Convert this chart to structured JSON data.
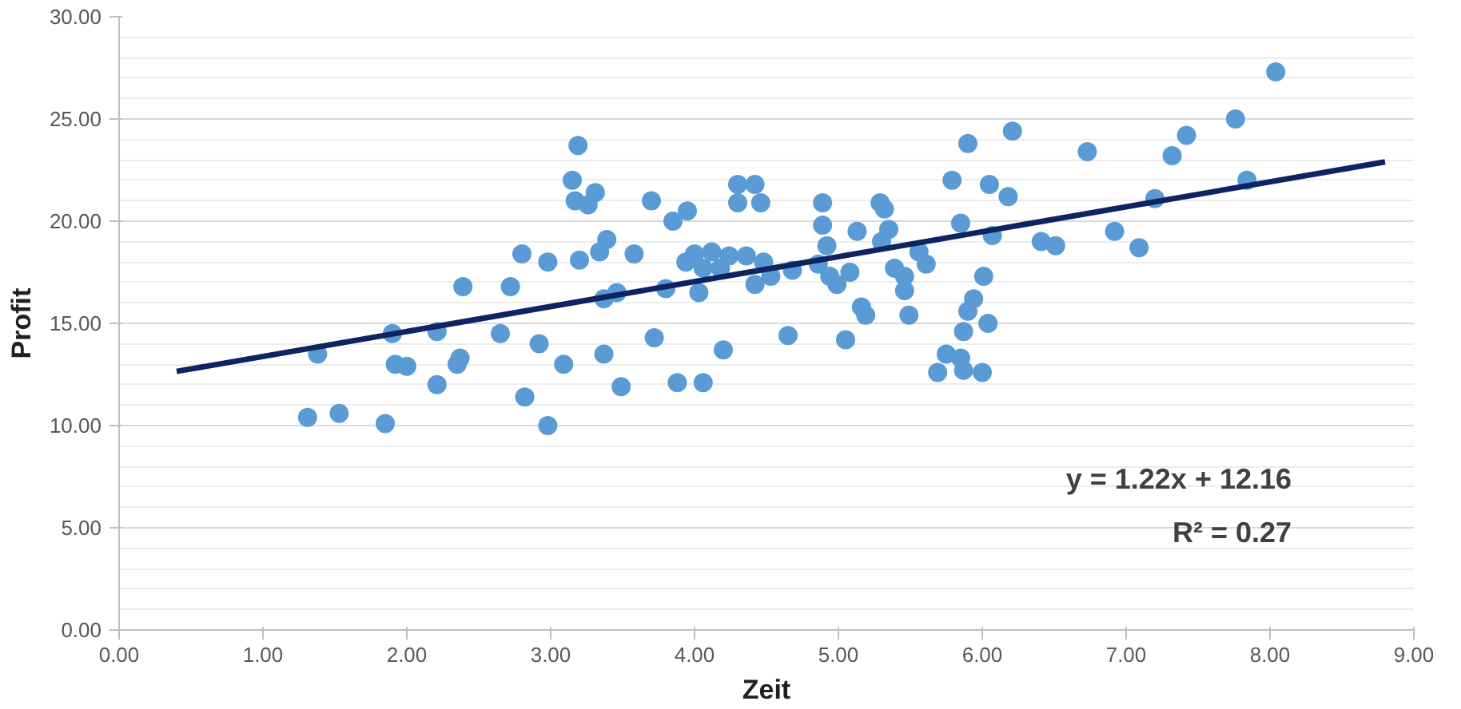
{
  "chart_data": {
    "type": "scatter",
    "xlabel": "Zeit",
    "ylabel": "Profit",
    "xlim": [
      0,
      9
    ],
    "ylim": [
      0,
      30
    ],
    "xticks": [
      {
        "value": 0,
        "label": "0.00"
      },
      {
        "value": 1,
        "label": "1.00"
      },
      {
        "value": 2,
        "label": "2.00"
      },
      {
        "value": 3,
        "label": "3.00"
      },
      {
        "value": 4,
        "label": "4.00"
      },
      {
        "value": 5,
        "label": "5.00"
      },
      {
        "value": 6,
        "label": "6.00"
      },
      {
        "value": 7,
        "label": "7.00"
      },
      {
        "value": 8,
        "label": "8.00"
      },
      {
        "value": 9,
        "label": "9.00"
      }
    ],
    "yticks": [
      {
        "value": 0,
        "label": "0.00"
      },
      {
        "value": 5,
        "label": "5.00"
      },
      {
        "value": 10,
        "label": "10.00"
      },
      {
        "value": 15,
        "label": "15.00"
      },
      {
        "value": 20,
        "label": "20.00"
      },
      {
        "value": 25,
        "label": "25.00"
      },
      {
        "value": 30,
        "label": "30.00"
      }
    ],
    "grid": "y",
    "annotations": [
      "y = 1.22x + 12.16",
      "R² = 0.27"
    ],
    "series": [
      {
        "marker": "circle",
        "color": "#5b9bd5",
        "x": [
          1.31,
          1.53,
          1.85,
          1.38,
          1.9,
          1.92,
          2.0,
          2.21,
          2.37,
          2.35,
          2.39,
          2.21,
          2.65,
          2.72,
          2.8,
          2.82,
          2.92,
          2.98,
          2.98,
          3.09,
          3.15,
          3.19,
          3.17,
          3.26,
          3.31,
          3.2,
          3.34,
          3.37,
          3.39,
          3.37,
          3.46,
          3.49,
          3.58,
          3.7,
          3.72,
          3.8,
          3.85,
          3.88,
          3.95,
          4.06,
          3.94,
          4.0,
          4.06,
          4.12,
          4.18,
          4.24,
          4.03,
          4.2,
          4.3,
          4.3,
          4.42,
          4.46,
          4.36,
          4.42,
          4.48,
          4.53,
          4.65,
          4.68,
          4.86,
          4.89,
          4.89,
          4.92,
          4.94,
          4.99,
          5.05,
          5.08,
          5.13,
          5.16,
          5.19,
          5.29,
          5.32,
          5.3,
          5.35,
          5.39,
          5.46,
          5.46,
          5.49,
          5.56,
          5.61,
          5.69,
          5.75,
          5.79,
          5.85,
          5.87,
          5.9,
          5.85,
          5.87,
          5.9,
          5.94,
          6.0,
          6.01,
          6.04,
          6.05,
          6.07,
          6.18,
          6.21,
          6.41,
          6.51,
          6.73,
          6.92,
          7.09,
          7.2,
          7.32,
          7.42,
          7.76,
          7.84,
          8.04
        ],
        "values": [
          10.4,
          10.6,
          10.1,
          13.5,
          14.5,
          13.0,
          12.9,
          12.0,
          13.3,
          13.0,
          16.8,
          14.6,
          14.5,
          16.8,
          18.4,
          11.4,
          14.0,
          10.0,
          18.0,
          13.0,
          22.0,
          23.7,
          21.0,
          20.8,
          21.4,
          18.1,
          18.5,
          13.5,
          19.1,
          16.2,
          16.5,
          11.9,
          18.4,
          21.0,
          14.3,
          16.7,
          20.0,
          12.1,
          20.5,
          12.1,
          18.0,
          18.4,
          17.7,
          18.5,
          17.7,
          18.3,
          16.5,
          13.7,
          21.8,
          20.9,
          21.8,
          20.9,
          18.3,
          16.9,
          18.0,
          17.3,
          14.4,
          17.6,
          17.9,
          20.9,
          19.8,
          18.8,
          17.3,
          16.9,
          14.2,
          17.5,
          19.5,
          15.8,
          15.4,
          20.9,
          20.6,
          19.0,
          19.6,
          17.7,
          17.3,
          16.6,
          15.4,
          18.5,
          17.9,
          12.6,
          13.5,
          22.0,
          13.3,
          12.7,
          23.8,
          19.9,
          14.6,
          15.6,
          16.2,
          12.6,
          17.3,
          15.0,
          21.8,
          19.3,
          21.2,
          24.4,
          19.0,
          18.8,
          23.4,
          19.5,
          18.7,
          21.1,
          23.2,
          24.2,
          25.0,
          22.0,
          27.3
        ]
      },
      {
        "type": "line",
        "color": "#0d2460",
        "x": [
          0.4,
          8.8
        ],
        "values": [
          12.65,
          22.9
        ]
      }
    ]
  }
}
